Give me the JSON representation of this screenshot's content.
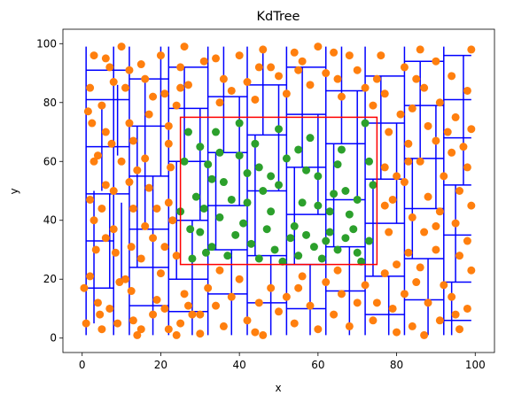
{
  "chart_data": {
    "type": "scatter",
    "title": "KdTree",
    "xlabel": "x",
    "ylabel": "y",
    "xlim": [
      -4.9,
      104.9
    ],
    "ylim": [
      -4.9,
      104.9
    ],
    "xticks": [
      0,
      20,
      40,
      60,
      80,
      100
    ],
    "yticks": [
      0,
      20,
      40,
      60,
      80,
      100
    ],
    "grid": false,
    "colors": {
      "outside_points": "#ff7f0e",
      "inside_points": "#2ca02c",
      "partition_lines": "#0000ff",
      "query_box": "#ff0000"
    },
    "query_box": {
      "x0": 25,
      "y0": 25,
      "x1": 75,
      "y1": 75
    },
    "points": [
      [
        0.5,
        17.0
      ],
      [
        1.0,
        5.0
      ],
      [
        2.0,
        21.0
      ],
      [
        1.5,
        77.0
      ],
      [
        2.5,
        73.0
      ],
      [
        3.0,
        60.0
      ],
      [
        2.0,
        47.0
      ],
      [
        3.0,
        40.0
      ],
      [
        4.0,
        12.0
      ],
      [
        4.5,
        8.0
      ],
      [
        5.0,
        3.0
      ],
      [
        3.5,
        30.0
      ],
      [
        5.0,
        44.0
      ],
      [
        6.0,
        52.0
      ],
      [
        6.0,
        70.0
      ],
      [
        5.0,
        79.0
      ],
      [
        3.0,
        96.0
      ],
      [
        7.0,
        92.0
      ],
      [
        8.0,
        87.0
      ],
      [
        7.5,
        66.0
      ],
      [
        8.0,
        37.0
      ],
      [
        8.5,
        29.0
      ],
      [
        9.5,
        19.0
      ],
      [
        7.0,
        10.0
      ],
      [
        9.0,
        5.0
      ],
      [
        10.0,
        99.0
      ],
      [
        11.0,
        85.0
      ],
      [
        12.0,
        73.0
      ],
      [
        13.0,
        67.0
      ],
      [
        12.0,
        53.0
      ],
      [
        13.0,
        44.0
      ],
      [
        12.5,
        31.0
      ],
      [
        11.0,
        20.0
      ],
      [
        12.5,
        16.0
      ],
      [
        13.0,
        6.0
      ],
      [
        14.0,
        1.0
      ],
      [
        15.0,
        93.0
      ],
      [
        16.0,
        88.0
      ],
      [
        17.0,
        76.0
      ],
      [
        16.0,
        61.0
      ],
      [
        17.0,
        51.0
      ],
      [
        16.0,
        38.0
      ],
      [
        18.0,
        34.0
      ],
      [
        19.0,
        13.0
      ],
      [
        18.0,
        8.0
      ],
      [
        20.0,
        96.0
      ],
      [
        21.0,
        83.0
      ],
      [
        22.0,
        66.0
      ],
      [
        22.5,
        58.0
      ],
      [
        22.0,
        46.0
      ],
      [
        20.0,
        22.0
      ],
      [
        21.0,
        10.0
      ],
      [
        22.0,
        3.0
      ],
      [
        24.0,
        1.0
      ],
      [
        25.0,
        92.0
      ],
      [
        26.0,
        99.0
      ],
      [
        27.0,
        86.0
      ],
      [
        24.0,
        79.0
      ],
      [
        25.0,
        43.0
      ],
      [
        24.0,
        28.0
      ],
      [
        26.0,
        15.0
      ],
      [
        27.0,
        11.0
      ],
      [
        28.0,
        8.0
      ],
      [
        30.0,
        1.5
      ],
      [
        31.0,
        94.0
      ],
      [
        34.0,
        95.0
      ],
      [
        36.0,
        88.0
      ],
      [
        38.0,
        84.0
      ],
      [
        40.0,
        96.0
      ],
      [
        42.0,
        87.0
      ],
      [
        44.0,
        81.0
      ],
      [
        46.0,
        98.0
      ],
      [
        48.0,
        92.0
      ],
      [
        50.0,
        89.0
      ],
      [
        52.0,
        83.0
      ],
      [
        54.0,
        97.0
      ],
      [
        56.0,
        94.0
      ],
      [
        58.0,
        86.0
      ],
      [
        60.0,
        99.0
      ],
      [
        62.0,
        90.0
      ],
      [
        64.0,
        97.0
      ],
      [
        66.0,
        82.0
      ],
      [
        68.0,
        96.0
      ],
      [
        70.0,
        91.0
      ],
      [
        72.0,
        85.0
      ],
      [
        74.0,
        79.0
      ],
      [
        30.0,
        8.0
      ],
      [
        32.0,
        17.0
      ],
      [
        34.0,
        11.0
      ],
      [
        36.0,
        4.0
      ],
      [
        38.0,
        14.0
      ],
      [
        40.0,
        20.0
      ],
      [
        42.0,
        6.0
      ],
      [
        44.0,
        2.0
      ],
      [
        46.0,
        1.0
      ],
      [
        48.0,
        17.0
      ],
      [
        50.0,
        9.0
      ],
      [
        52.0,
        14.0
      ],
      [
        54.0,
        5.0
      ],
      [
        56.0,
        21.0
      ],
      [
        58.0,
        11.0
      ],
      [
        60.0,
        3.0
      ],
      [
        62.0,
        19.0
      ],
      [
        64.0,
        8.0
      ],
      [
        66.0,
        15.0
      ],
      [
        68.0,
        4.0
      ],
      [
        70.0,
        12.0
      ],
      [
        72.0,
        18.0
      ],
      [
        74.0,
        6.0
      ],
      [
        76.0,
        96.0
      ],
      [
        77.0,
        83.0
      ],
      [
        78.0,
        70.0
      ],
      [
        77.0,
        58.0
      ],
      [
        79.0,
        47.0
      ],
      [
        78.0,
        36.0
      ],
      [
        77.0,
        22.0
      ],
      [
        79.0,
        10.0
      ],
      [
        80.0,
        2.0
      ],
      [
        82.0,
        92.0
      ],
      [
        81.0,
        76.0
      ],
      [
        83.0,
        66.0
      ],
      [
        82.0,
        53.0
      ],
      [
        84.0,
        41.0
      ],
      [
        83.0,
        29.0
      ],
      [
        82.0,
        15.0
      ],
      [
        84.0,
        4.0
      ],
      [
        86.0,
        98.0
      ],
      [
        87.0,
        85.0
      ],
      [
        88.0,
        72.0
      ],
      [
        86.0,
        60.0
      ],
      [
        88.0,
        48.0
      ],
      [
        87.0,
        36.0
      ],
      [
        86.0,
        24.0
      ],
      [
        88.0,
        12.0
      ],
      [
        87.0,
        1.0
      ],
      [
        90.0,
        94.0
      ],
      [
        91.0,
        80.0
      ],
      [
        90.0,
        67.0
      ],
      [
        92.0,
        55.0
      ],
      [
        91.0,
        43.0
      ],
      [
        90.0,
        30.0
      ],
      [
        92.0,
        18.0
      ],
      [
        91.0,
        6.0
      ],
      [
        94.0,
        89.0
      ],
      [
        95.0,
        75.0
      ],
      [
        94.0,
        63.0
      ],
      [
        96.0,
        50.0
      ],
      [
        95.0,
        39.0
      ],
      [
        96.0,
        28.0
      ],
      [
        94.0,
        14.0
      ],
      [
        96.0,
        3.0
      ],
      [
        99.0,
        98.0
      ],
      [
        98.0,
        84.0
      ],
      [
        99.0,
        71.0
      ],
      [
        98.0,
        58.0
      ],
      [
        99.0,
        45.0
      ],
      [
        98.0,
        33.0
      ],
      [
        99.0,
        23.0
      ],
      [
        98.0,
        10.0
      ],
      [
        22.0,
        72.0
      ],
      [
        23.0,
        40.0
      ],
      [
        21.0,
        31.0
      ],
      [
        10.0,
        60.0
      ],
      [
        8.0,
        50.0
      ],
      [
        15.0,
        27.0
      ],
      [
        30.0,
        65.0
      ],
      [
        32.0,
        59.0
      ],
      [
        34.0,
        70.0
      ],
      [
        36.0,
        53.0
      ],
      [
        38.0,
        47.0
      ],
      [
        40.0,
        62.0
      ],
      [
        42.0,
        56.0
      ],
      [
        44.0,
        66.0
      ],
      [
        46.0,
        50.0
      ],
      [
        48.0,
        43.0
      ],
      [
        50.0,
        71.0
      ],
      [
        52.0,
        61.0
      ],
      [
        54.0,
        38.0
      ],
      [
        56.0,
        46.0
      ],
      [
        58.0,
        68.0
      ],
      [
        60.0,
        55.0
      ],
      [
        62.0,
        33.0
      ],
      [
        64.0,
        49.0
      ],
      [
        66.0,
        64.0
      ],
      [
        68.0,
        42.0
      ],
      [
        70.0,
        29.0
      ],
      [
        72.0,
        73.0
      ],
      [
        74.0,
        52.0
      ],
      [
        28.0,
        27.0
      ],
      [
        30.0,
        36.0
      ],
      [
        33.0,
        31.0
      ],
      [
        35.0,
        41.0
      ],
      [
        37.0,
        28.0
      ],
      [
        39.0,
        35.0
      ],
      [
        41.0,
        39.0
      ],
      [
        43.0,
        32.0
      ],
      [
        45.0,
        27.0
      ],
      [
        47.0,
        37.0
      ],
      [
        49.0,
        30.0
      ],
      [
        51.0,
        26.0
      ],
      [
        53.0,
        34.0
      ],
      [
        55.0,
        28.0
      ],
      [
        57.0,
        35.0
      ],
      [
        59.0,
        31.0
      ],
      [
        61.0,
        27.0
      ],
      [
        63.0,
        36.0
      ],
      [
        65.0,
        30.0
      ],
      [
        67.0,
        34.0
      ],
      [
        69.0,
        37.0
      ],
      [
        71.0,
        26.0
      ],
      [
        73.0,
        33.0
      ],
      [
        26.0,
        60.0
      ],
      [
        27.0,
        70.0
      ],
      [
        29.0,
        48.0
      ],
      [
        31.0,
        44.0
      ],
      [
        33.0,
        54.0
      ],
      [
        35.0,
        63.0
      ],
      [
        40.0,
        73.0
      ],
      [
        45.0,
        58.0
      ],
      [
        50.0,
        52.0
      ],
      [
        55.0,
        64.0
      ],
      [
        60.0,
        45.0
      ],
      [
        65.0,
        59.0
      ],
      [
        70.0,
        47.0
      ],
      [
        73.0,
        60.0
      ],
      [
        27.5,
        37.0
      ],
      [
        31.5,
        29.0
      ],
      [
        42.0,
        46.0
      ],
      [
        48.0,
        55.0
      ],
      [
        57.0,
        57.0
      ],
      [
        63.0,
        43.0
      ],
      [
        67.0,
        50.0
      ],
      [
        2.0,
        85.0
      ],
      [
        6.0,
        95.0
      ],
      [
        12.0,
        91.0
      ],
      [
        18.0,
        82.0
      ],
      [
        4.0,
        62.0
      ],
      [
        14.0,
        57.0
      ],
      [
        19.0,
        44.0
      ],
      [
        6.0,
        34.0
      ],
      [
        15.0,
        3.0
      ],
      [
        25.0,
        5.0
      ],
      [
        35.0,
        23.0
      ],
      [
        45.0,
        12.0
      ],
      [
        55.0,
        17.0
      ],
      [
        65.0,
        23.0
      ],
      [
        75.0,
        12.0
      ],
      [
        85.0,
        19.0
      ],
      [
        95.0,
        8.0
      ],
      [
        85.0,
        88.0
      ],
      [
        75.0,
        88.0
      ],
      [
        65.0,
        88.0
      ],
      [
        55.0,
        91.0
      ],
      [
        45.0,
        92.0
      ],
      [
        35.0,
        80.0
      ],
      [
        25.0,
        85.0
      ],
      [
        80.0,
        55.0
      ],
      [
        90.0,
        38.0
      ],
      [
        80.0,
        25.0
      ],
      [
        93.0,
        70.0
      ],
      [
        84.0,
        78.0
      ],
      [
        97.0,
        65.0
      ],
      [
        77.0,
        45.0
      ],
      [
        83.0,
        60.0
      ]
    ],
    "partition_segments": [
      [
        1,
        1,
        1,
        99
      ],
      [
        1,
        17,
        8,
        17
      ],
      [
        1,
        33,
        8,
        33
      ],
      [
        1,
        49,
        12,
        49
      ],
      [
        1,
        65,
        12,
        65
      ],
      [
        1,
        81,
        12,
        81
      ],
      [
        1,
        91,
        12,
        91
      ],
      [
        3,
        5,
        3,
        50
      ],
      [
        5,
        50,
        5,
        80
      ],
      [
        7,
        17,
        7,
        49
      ],
      [
        8,
        1,
        8,
        99
      ],
      [
        9,
        62,
        9,
        86
      ],
      [
        10,
        20,
        10,
        46
      ],
      [
        12,
        1,
        12,
        99
      ],
      [
        12,
        11,
        22,
        11
      ],
      [
        12,
        24,
        22,
        24
      ],
      [
        12,
        37,
        22,
        37
      ],
      [
        12,
        55,
        22,
        55
      ],
      [
        12,
        72,
        22,
        72
      ],
      [
        12,
        88,
        22,
        88
      ],
      [
        14,
        24,
        14,
        72
      ],
      [
        16,
        37,
        16,
        88
      ],
      [
        18,
        1,
        18,
        55
      ],
      [
        20,
        55,
        20,
        99
      ],
      [
        22,
        1,
        22,
        99
      ],
      [
        22,
        9,
        32,
        9
      ],
      [
        22,
        20,
        32,
        20
      ],
      [
        22,
        40,
        32,
        40
      ],
      [
        22,
        60,
        32,
        60
      ],
      [
        22,
        78,
        32,
        78
      ],
      [
        22,
        92,
        32,
        92
      ],
      [
        24,
        20,
        24,
        60
      ],
      [
        26,
        60,
        26,
        92
      ],
      [
        28,
        1,
        28,
        40
      ],
      [
        30,
        40,
        30,
        78
      ],
      [
        32,
        1,
        32,
        99
      ],
      [
        32,
        15,
        42,
        15
      ],
      [
        32,
        30,
        42,
        30
      ],
      [
        32,
        45,
        42,
        45
      ],
      [
        32,
        63,
        42,
        63
      ],
      [
        32,
        82,
        42,
        82
      ],
      [
        34,
        30,
        34,
        63
      ],
      [
        36,
        63,
        36,
        99
      ],
      [
        38,
        1,
        38,
        30
      ],
      [
        40,
        45,
        40,
        82
      ],
      [
        42,
        1,
        42,
        99
      ],
      [
        42,
        12,
        52,
        12
      ],
      [
        42,
        28,
        52,
        28
      ],
      [
        42,
        50,
        52,
        50
      ],
      [
        42,
        69,
        52,
        69
      ],
      [
        42,
        86,
        52,
        86
      ],
      [
        44,
        28,
        44,
        69
      ],
      [
        46,
        69,
        46,
        99
      ],
      [
        48,
        1,
        48,
        28
      ],
      [
        50,
        50,
        50,
        86
      ],
      [
        52,
        1,
        52,
        99
      ],
      [
        52,
        10,
        62,
        10
      ],
      [
        52,
        25,
        62,
        25
      ],
      [
        52,
        42,
        62,
        42
      ],
      [
        52,
        58,
        62,
        58
      ],
      [
        52,
        76,
        62,
        76
      ],
      [
        52,
        92,
        62,
        92
      ],
      [
        54,
        25,
        54,
        58
      ],
      [
        56,
        58,
        56,
        92
      ],
      [
        58,
        1,
        58,
        25
      ],
      [
        60,
        42,
        60,
        76
      ],
      [
        62,
        1,
        62,
        99
      ],
      [
        62,
        16,
        72,
        16
      ],
      [
        62,
        31,
        72,
        31
      ],
      [
        62,
        47,
        72,
        47
      ],
      [
        62,
        66,
        72,
        66
      ],
      [
        62,
        84,
        72,
        84
      ],
      [
        64,
        31,
        64,
        66
      ],
      [
        66,
        66,
        66,
        99
      ],
      [
        68,
        1,
        68,
        31
      ],
      [
        70,
        47,
        70,
        84
      ],
      [
        72,
        1,
        72,
        99
      ],
      [
        72,
        8,
        82,
        8
      ],
      [
        72,
        21,
        82,
        21
      ],
      [
        72,
        39,
        82,
        39
      ],
      [
        72,
        54,
        82,
        54
      ],
      [
        72,
        73,
        82,
        73
      ],
      [
        72,
        89,
        82,
        89
      ],
      [
        74,
        21,
        74,
        54
      ],
      [
        76,
        54,
        76,
        89
      ],
      [
        78,
        1,
        78,
        21
      ],
      [
        80,
        39,
        80,
        73
      ],
      [
        82,
        1,
        82,
        99
      ],
      [
        82,
        13,
        92,
        13
      ],
      [
        82,
        27,
        92,
        27
      ],
      [
        82,
        44,
        92,
        44
      ],
      [
        82,
        61,
        92,
        61
      ],
      [
        82,
        79,
        92,
        79
      ],
      [
        82,
        94,
        92,
        94
      ],
      [
        84,
        27,
        84,
        61
      ],
      [
        86,
        61,
        86,
        94
      ],
      [
        88,
        1,
        88,
        27
      ],
      [
        90,
        44,
        90,
        79
      ],
      [
        92,
        1,
        92,
        99
      ],
      [
        92,
        6,
        99,
        6
      ],
      [
        92,
        19,
        99,
        19
      ],
      [
        92,
        35,
        99,
        35
      ],
      [
        92,
        52,
        99,
        52
      ],
      [
        92,
        68,
        99,
        68
      ],
      [
        92,
        81,
        99,
        81
      ],
      [
        92,
        96,
        99,
        96
      ],
      [
        95,
        19,
        95,
        52
      ],
      [
        97,
        52,
        97,
        96
      ],
      [
        94,
        1,
        94,
        19
      ]
    ]
  }
}
